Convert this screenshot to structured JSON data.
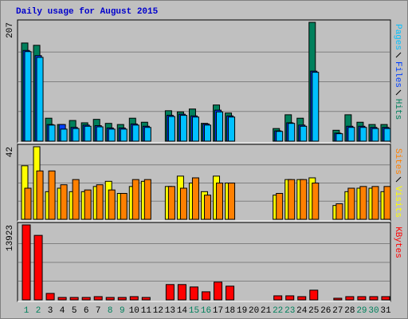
{
  "chart_data": [
    {
      "type": "bar",
      "title": "Daily usage for August 2015",
      "series": [
        {
          "name": "Hits",
          "color": "#00805c",
          "values": [
            171,
            167,
            40,
            29,
            36,
            32,
            38,
            31,
            29,
            40,
            33,
            0,
            53,
            51,
            56,
            31,
            63,
            49,
            0,
            0,
            0,
            22,
            46,
            40,
            207,
            0,
            19,
            46,
            33,
            29,
            29
          ]
        },
        {
          "name": "Files",
          "color": "#0040ff",
          "values": [
            158,
            149,
            29,
            29,
            24,
            28,
            27,
            23,
            23,
            30,
            26,
            0,
            45,
            47,
            44,
            30,
            54,
            44,
            0,
            0,
            0,
            18,
            32,
            28,
            122,
            0,
            14,
            26,
            26,
            24,
            24
          ]
        },
        {
          "name": "Pages",
          "color": "#00c0ff",
          "values": [
            156,
            146,
            28,
            21,
            22,
            26,
            25,
            21,
            21,
            28,
            24,
            0,
            43,
            45,
            42,
            28,
            51,
            42,
            0,
            0,
            0,
            17,
            31,
            26,
            120,
            0,
            13,
            24,
            24,
            22,
            22
          ]
        }
      ],
      "ylim": [
        0,
        207
      ],
      "yticks": [
        207
      ],
      "grid": true
    },
    {
      "type": "bar",
      "series": [
        {
          "name": "Visits",
          "color": "#ffff00",
          "values": [
            31,
            42,
            16,
            18,
            16,
            16,
            19,
            22,
            15,
            19,
            22,
            0,
            19,
            25,
            21,
            16,
            25,
            21,
            0,
            0,
            0,
            14,
            23,
            23,
            24,
            0,
            8,
            16,
            18,
            18,
            16
          ]
        },
        {
          "name": "Sites",
          "color": "#ff8000",
          "values": [
            18,
            28,
            28,
            20,
            23,
            17,
            20,
            17,
            15,
            23,
            23,
            0,
            19,
            18,
            24,
            14,
            21,
            21,
            0,
            0,
            0,
            15,
            23,
            23,
            21,
            0,
            9,
            18,
            19,
            19,
            19
          ]
        }
      ],
      "ylim": [
        0,
        42
      ],
      "yticks": [
        42
      ],
      "grid": true
    },
    {
      "type": "bar",
      "categories": [
        "1",
        "2",
        "3",
        "4",
        "5",
        "6",
        "7",
        "8",
        "9",
        "10",
        "11",
        "12",
        "13",
        "14",
        "15",
        "16",
        "17",
        "18",
        "19",
        "20",
        "21",
        "22",
        "23",
        "24",
        "25",
        "26",
        "27",
        "28",
        "29",
        "30",
        "31"
      ],
      "category_colors": [
        "#00805c",
        "#00805c",
        "#000000",
        "#000000",
        "#000000",
        "#000000",
        "#000000",
        "#00805c",
        "#00805c",
        "#000000",
        "#000000",
        "#000000",
        "#000000",
        "#000000",
        "#00805c",
        "#00805c",
        "#000000",
        "#000000",
        "#000000",
        "#000000",
        "#000000",
        "#00805c",
        "#00805c",
        "#000000",
        "#000000",
        "#000000",
        "#000000",
        "#000000",
        "#00805c",
        "#00805c",
        "#000000"
      ],
      "series": [
        {
          "name": "KBytes",
          "color": "#ff0000",
          "values": [
            13923,
            11977,
            1198,
            450,
            450,
            450,
            600,
            450,
            450,
            600,
            450,
            0,
            2845,
            2845,
            2395,
            1497,
            3294,
            2545,
            0,
            0,
            0,
            750,
            750,
            600,
            1800,
            0,
            300,
            600,
            600,
            600,
            600
          ]
        }
      ],
      "ylim": [
        0,
        13923
      ],
      "yticks": [
        13923
      ],
      "grid": true
    }
  ]
}
